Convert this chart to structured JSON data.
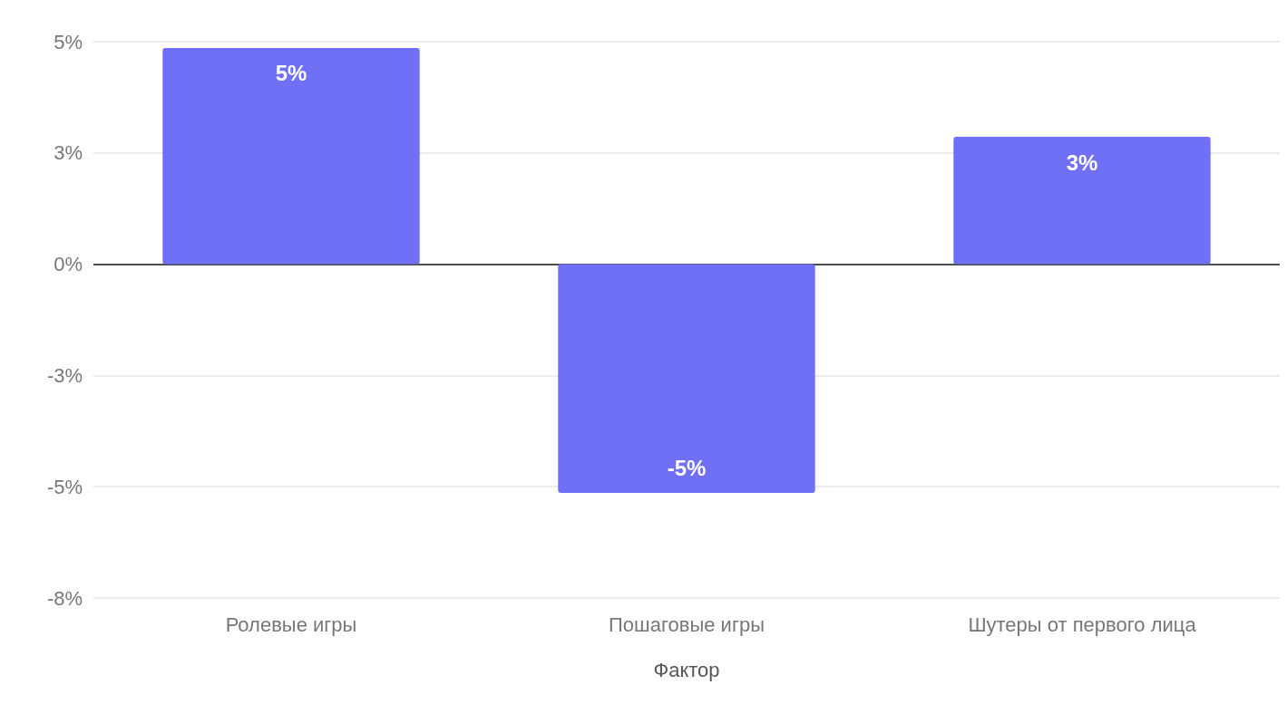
{
  "chart_data": {
    "type": "bar",
    "xlabel": "Фактор",
    "categories": [
      "Ролевые игры",
      "Пошаговые игры",
      "Шутеры от первого лица"
    ],
    "values": [
      4.86,
      -5.14,
      2.86
    ],
    "value_labels": [
      "5%",
      "-5%",
      "3%"
    ],
    "color": "#6f70f5",
    "ylim": [
      -7.5,
      5
    ],
    "yticks": [
      {
        "value": -7.5,
        "label": "-8%"
      },
      {
        "value": -5,
        "label": "-5%"
      },
      {
        "value": -2.5,
        "label": "-3%"
      },
      {
        "value": 0,
        "label": "0%"
      },
      {
        "value": 2.5,
        "label": "3%"
      },
      {
        "value": 5,
        "label": "5%"
      }
    ],
    "grid": "y"
  }
}
